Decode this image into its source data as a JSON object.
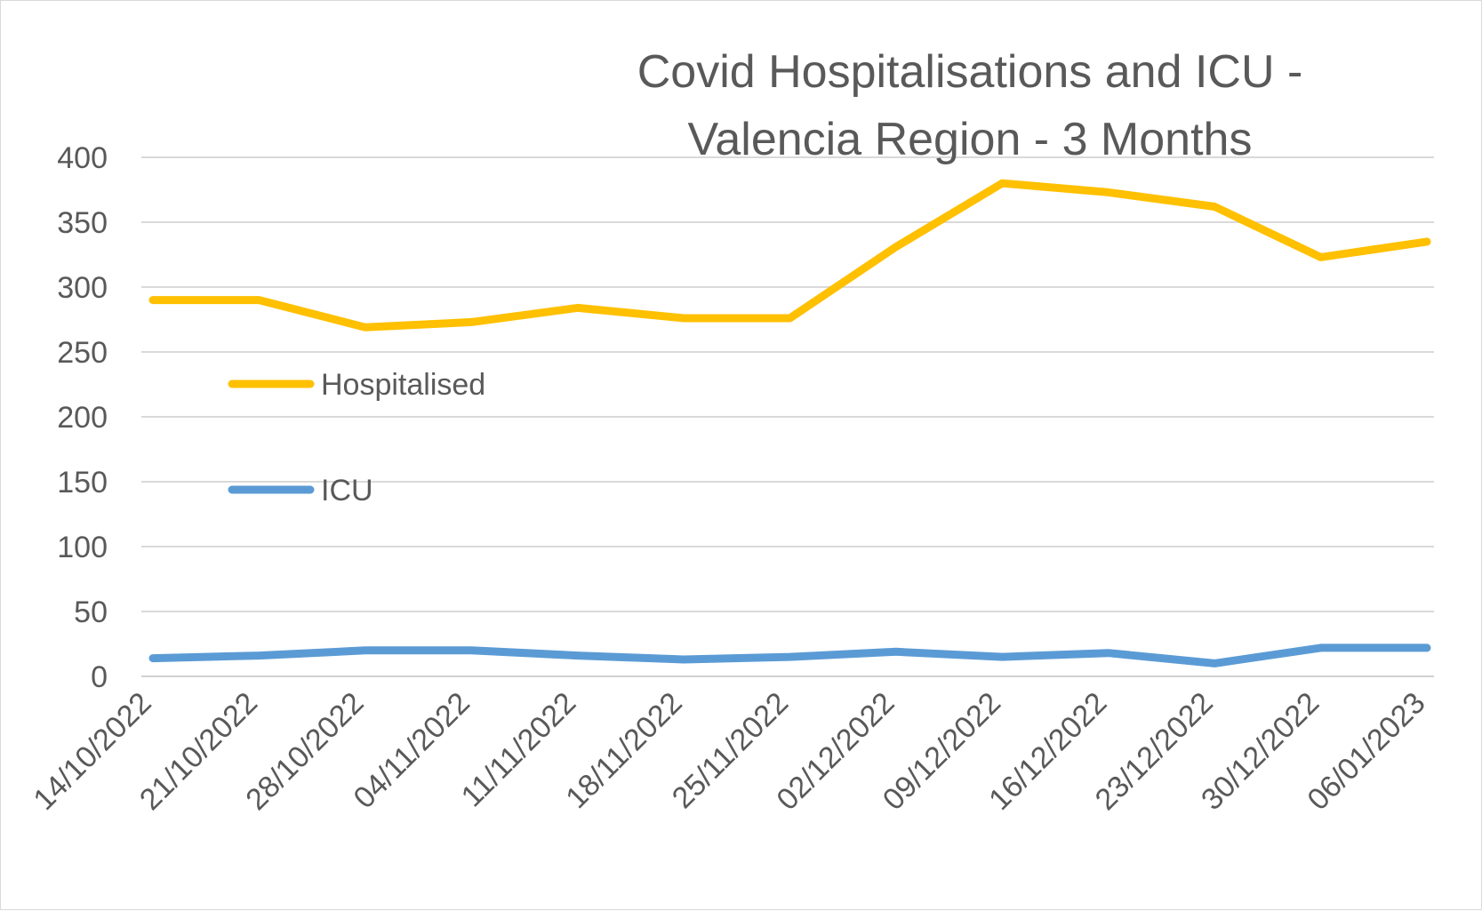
{
  "chart_data": {
    "type": "line",
    "title_lines": [
      "Covid Hospitalisations and ICU -",
      "Valencia Region - 3 Months"
    ],
    "xlabel": "",
    "ylabel": "",
    "categories": [
      "14/10/2022",
      "21/10/2022",
      "28/10/2022",
      "04/11/2022",
      "11/11/2022",
      "18/11/2022",
      "25/11/2022",
      "02/12/2022",
      "09/12/2022",
      "16/12/2022",
      "23/12/2022",
      "30/12/2022",
      "06/01/2023"
    ],
    "ylim": [
      0,
      400
    ],
    "yticks": [
      0,
      50,
      100,
      150,
      200,
      250,
      300,
      350,
      400
    ],
    "grid": true,
    "legend_placement": "left, inside plot",
    "series": [
      {
        "name": "Hospitalised",
        "color": "#FFC000",
        "values": [
          290,
          290,
          269,
          273,
          284,
          276,
          276,
          331,
          380,
          373,
          362,
          323,
          335
        ]
      },
      {
        "name": "ICU",
        "color": "#5B9BD5",
        "values": [
          14,
          16,
          20,
          20,
          16,
          13,
          15,
          19,
          15,
          18,
          10,
          22,
          22
        ]
      }
    ]
  }
}
